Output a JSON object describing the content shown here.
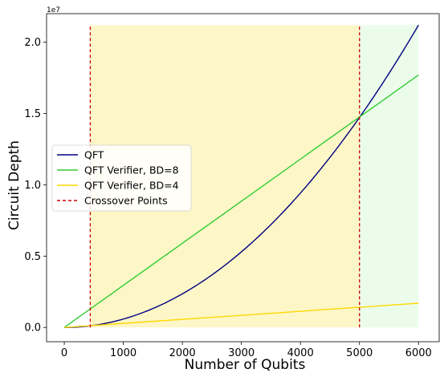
{
  "chart_data": {
    "type": "line",
    "xlabel": "Number of Qubits",
    "ylabel": "Circuit Depth",
    "y_scale_label": "1e7",
    "xlim": [
      -300,
      6350
    ],
    "ylim": [
      -0.1,
      2.2
    ],
    "x_ticks": [
      0,
      1000,
      2000,
      3000,
      4000,
      5000,
      6000
    ],
    "x_tick_labels": [
      "0",
      "1000",
      "2000",
      "3000",
      "4000",
      "5000",
      "6000"
    ],
    "y_ticks": [
      0.0,
      0.5,
      1.0,
      1.5,
      2.0
    ],
    "y_tick_labels": [
      "0.0",
      "0.5",
      "1.0",
      "1.5",
      "2.0"
    ],
    "shaded_regions": [
      {
        "x": [
          440,
          5000
        ],
        "y": [
          0,
          2.12
        ],
        "color": "#fdf7c8"
      },
      {
        "x": [
          5000,
          6000
        ],
        "y": [
          0,
          2.12
        ],
        "color": "#ebfdea"
      }
    ],
    "series": [
      {
        "name": "QFT",
        "color": "#000080",
        "style": "solid",
        "kind": "quadratic",
        "x": [
          0,
          500,
          1000,
          1500,
          2000,
          2500,
          3000,
          3500,
          4000,
          4500,
          5000,
          5500,
          6000
        ],
        "y": [
          0.0,
          0.0147,
          0.0589,
          0.1325,
          0.2356,
          0.3681,
          0.53,
          0.7214,
          0.9422,
          1.1925,
          1.4722,
          1.7814,
          2.12
        ]
      },
      {
        "name": "QFT Verifier, BD=8",
        "color": "#33cc33",
        "style": "solid",
        "kind": "linear",
        "x": [
          0,
          6000
        ],
        "y": [
          0.0,
          1.77
        ]
      },
      {
        "name": "QFT Verifier, BD=4",
        "color": "#ffd700",
        "style": "solid",
        "kind": "linear",
        "x": [
          0,
          6000
        ],
        "y": [
          0.0,
          0.17
        ]
      },
      {
        "name": "Crossover Points",
        "color": "#cc0000",
        "style": "dashed",
        "kind": "vlines",
        "x": [
          440,
          5000
        ],
        "y": [
          0,
          2.12
        ]
      }
    ],
    "legend": "center-left",
    "grid": false
  }
}
